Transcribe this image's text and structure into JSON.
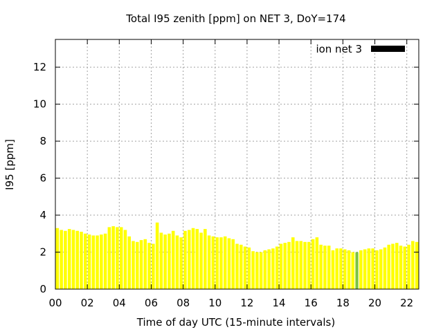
{
  "chart_data": {
    "type": "bar",
    "title": "Total I95 zenith [ppm] on NET 3, DoY=174",
    "xlabel": "Time of day UTC (15-minute intervals)",
    "ylabel": "I95 [ppm]",
    "xlim": [
      0,
      22.75
    ],
    "ylim": [
      0,
      13.5
    ],
    "x_ticks": [
      {
        "value": 0,
        "label": "00"
      },
      {
        "value": 2,
        "label": "02"
      },
      {
        "value": 4,
        "label": "04"
      },
      {
        "value": 6,
        "label": "06"
      },
      {
        "value": 8,
        "label": "08"
      },
      {
        "value": 10,
        "label": "10"
      },
      {
        "value": 12,
        "label": "12"
      },
      {
        "value": 14,
        "label": "14"
      },
      {
        "value": 16,
        "label": "16"
      },
      {
        "value": 18,
        "label": "18"
      },
      {
        "value": 20,
        "label": "20"
      },
      {
        "value": 22,
        "label": "22"
      }
    ],
    "y_ticks": [
      {
        "value": 0,
        "label": "0"
      },
      {
        "value": 2,
        "label": "2"
      },
      {
        "value": 4,
        "label": "4"
      },
      {
        "value": 6,
        "label": "6"
      },
      {
        "value": 8,
        "label": "8"
      },
      {
        "value": 10,
        "label": "10"
      },
      {
        "value": 12,
        "label": "12"
      }
    ],
    "grid": true,
    "legend": {
      "label": "ion net 3",
      "position": "top-right",
      "swatch_color": "#000000"
    },
    "series": [
      {
        "name": "ion net 3",
        "color": "#ffff00",
        "x_start": 0,
        "x_step": 0.25,
        "values": [
          3.3,
          3.2,
          3.15,
          3.25,
          3.2,
          3.15,
          3.1,
          3.0,
          2.95,
          2.9,
          2.9,
          2.95,
          3.0,
          3.35,
          3.4,
          3.35,
          3.35,
          3.2,
          2.85,
          2.6,
          2.55,
          2.65,
          2.7,
          2.5,
          2.45,
          3.6,
          3.05,
          2.95,
          3.0,
          3.15,
          2.9,
          2.8,
          3.15,
          3.2,
          3.3,
          3.25,
          3.05,
          3.25,
          2.9,
          2.85,
          2.8,
          2.8,
          2.85,
          2.75,
          2.7,
          2.45,
          2.4,
          2.3,
          2.25,
          2.05,
          2.0,
          2.0,
          2.1,
          2.15,
          2.2,
          2.3,
          2.45,
          2.5,
          2.55,
          2.8,
          2.6,
          2.6,
          2.55,
          2.55,
          2.7,
          2.8,
          2.4,
          2.35,
          2.35,
          2.1,
          2.2,
          2.2,
          2.15,
          2.1,
          2.0,
          1.95,
          2.1,
          2.15,
          2.2,
          2.2,
          2.1,
          2.15,
          2.25,
          2.4,
          2.45,
          2.5,
          2.35,
          2.3,
          2.4,
          2.6,
          2.55
        ]
      }
    ],
    "highlight": {
      "x": 18.75,
      "value": 2.0,
      "color": "#77c24a"
    }
  }
}
